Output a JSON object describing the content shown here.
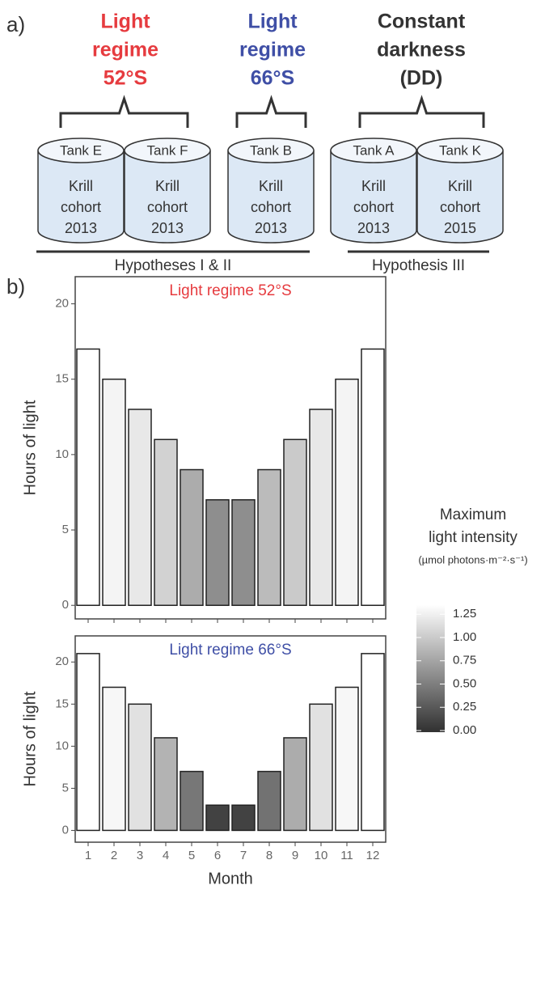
{
  "panel_labels": [
    "a)",
    "b)"
  ],
  "diagram": {
    "groups": [
      {
        "lines": [
          "Light",
          "regime",
          "52°S"
        ],
        "color": "#e63b3f"
      },
      {
        "lines": [
          "Light",
          "regime",
          "66°S"
        ],
        "color": "#3f4fa6"
      },
      {
        "lines": [
          "Constant",
          "darkness",
          "(DD)"
        ],
        "color": "#333333"
      }
    ],
    "tanks": [
      {
        "name": "Tank E",
        "lines": [
          "Krill",
          "cohort",
          "2013"
        ]
      },
      {
        "name": "Tank F",
        "lines": [
          "Krill",
          "cohort",
          "2013"
        ]
      },
      {
        "name": "Tank B",
        "lines": [
          "Krill",
          "cohort",
          "2013"
        ]
      },
      {
        "name": "Tank A",
        "lines": [
          "Krill",
          "cohort",
          "2013"
        ]
      },
      {
        "name": "Tank K",
        "lines": [
          "Krill",
          "cohort",
          "2015"
        ]
      }
    ],
    "hypotheses": [
      "Hypotheses I & II",
      "Hypothesis III"
    ]
  },
  "colorbar": {
    "title": [
      "Maximum",
      "light intensity"
    ],
    "unit": "(µmol photons·m⁻²·s⁻¹)",
    "lim": [
      0,
      1.35
    ],
    "low_color": "#333333",
    "high_color": "#ffffff",
    "ticks": [
      {
        "value": 0,
        "label": "0.00"
      },
      0.25,
      {
        "value": 0.5,
        "label": "0.50"
      },
      0.75,
      {
        "value": 1,
        "label": "1.00"
      },
      1.25
    ]
  },
  "chart_data": [
    {
      "type": "bar",
      "title": "Light regime 52°S",
      "title_color": "#e63b3f",
      "y_label": "Hours of light",
      "categories": [
        null,
        null,
        null,
        null,
        null,
        null,
        null,
        null,
        null,
        null,
        null,
        null
      ],
      "values": [
        17,
        15,
        13,
        11,
        9,
        7,
        7,
        9,
        11,
        13,
        15,
        17
      ],
      "intensity": [
        1.35,
        1.28,
        1.2,
        1.05,
        0.8,
        0.6,
        0.6,
        0.9,
        1.0,
        1.2,
        1.28,
        1.35
      ],
      "ylim": [
        -0.9,
        21.8
      ],
      "yticks": [
        0,
        5,
        10,
        15,
        20
      ]
    },
    {
      "type": "bar",
      "title": "Light regime 66°S",
      "title_color": "#3f4fa6",
      "y_label": "Hours of light",
      "x_label": "Month",
      "categories": [
        "1",
        "2",
        "3",
        "4",
        "5",
        "6",
        "7",
        "8",
        "9",
        "10",
        "11",
        "12"
      ],
      "values": [
        21,
        17,
        15,
        11,
        7,
        3,
        3,
        7,
        11,
        15,
        17,
        21
      ],
      "intensity": [
        1.35,
        1.3,
        1.15,
        0.85,
        0.45,
        0.1,
        0.1,
        0.42,
        0.8,
        1.15,
        1.3,
        1.35
      ],
      "ylim": [
        -1.4,
        23.1
      ],
      "yticks": [
        0,
        5,
        10,
        15,
        20
      ]
    }
  ]
}
